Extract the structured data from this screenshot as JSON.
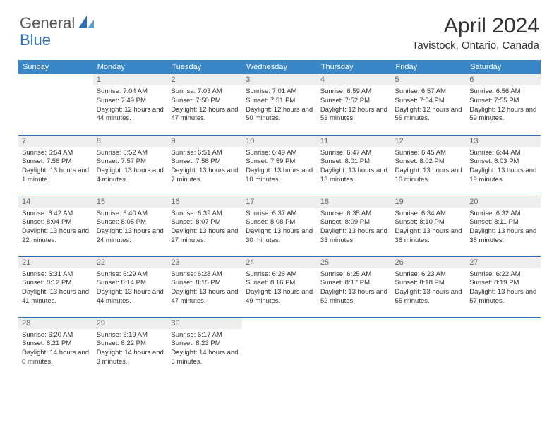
{
  "logo": {
    "text1": "General",
    "text2": "Blue"
  },
  "title": "April 2024",
  "location": "Tavistock, Ontario, Canada",
  "weekdays": [
    "Sunday",
    "Monday",
    "Tuesday",
    "Wednesday",
    "Thursday",
    "Friday",
    "Saturday"
  ],
  "colors": {
    "header_bg": "#3a87c8",
    "header_text": "#ffffff",
    "daynum_bg": "#eeeeee",
    "daynum_text": "#666666",
    "border": "#2e6fb5",
    "body_text": "#333333"
  },
  "weeks": [
    [
      {
        "n": "",
        "lines": []
      },
      {
        "n": "1",
        "lines": [
          "Sunrise: 7:04 AM",
          "Sunset: 7:49 PM",
          "Daylight: 12 hours and 44 minutes."
        ]
      },
      {
        "n": "2",
        "lines": [
          "Sunrise: 7:03 AM",
          "Sunset: 7:50 PM",
          "Daylight: 12 hours and 47 minutes."
        ]
      },
      {
        "n": "3",
        "lines": [
          "Sunrise: 7:01 AM",
          "Sunset: 7:51 PM",
          "Daylight: 12 hours and 50 minutes."
        ]
      },
      {
        "n": "4",
        "lines": [
          "Sunrise: 6:59 AM",
          "Sunset: 7:52 PM",
          "Daylight: 12 hours and 53 minutes."
        ]
      },
      {
        "n": "5",
        "lines": [
          "Sunrise: 6:57 AM",
          "Sunset: 7:54 PM",
          "Daylight: 12 hours and 56 minutes."
        ]
      },
      {
        "n": "6",
        "lines": [
          "Sunrise: 6:56 AM",
          "Sunset: 7:55 PM",
          "Daylight: 12 hours and 59 minutes."
        ]
      }
    ],
    [
      {
        "n": "7",
        "lines": [
          "Sunrise: 6:54 AM",
          "Sunset: 7:56 PM",
          "Daylight: 13 hours and 1 minute."
        ]
      },
      {
        "n": "8",
        "lines": [
          "Sunrise: 6:52 AM",
          "Sunset: 7:57 PM",
          "Daylight: 13 hours and 4 minutes."
        ]
      },
      {
        "n": "9",
        "lines": [
          "Sunrise: 6:51 AM",
          "Sunset: 7:58 PM",
          "Daylight: 13 hours and 7 minutes."
        ]
      },
      {
        "n": "10",
        "lines": [
          "Sunrise: 6:49 AM",
          "Sunset: 7:59 PM",
          "Daylight: 13 hours and 10 minutes."
        ]
      },
      {
        "n": "11",
        "lines": [
          "Sunrise: 6:47 AM",
          "Sunset: 8:01 PM",
          "Daylight: 13 hours and 13 minutes."
        ]
      },
      {
        "n": "12",
        "lines": [
          "Sunrise: 6:45 AM",
          "Sunset: 8:02 PM",
          "Daylight: 13 hours and 16 minutes."
        ]
      },
      {
        "n": "13",
        "lines": [
          "Sunrise: 6:44 AM",
          "Sunset: 8:03 PM",
          "Daylight: 13 hours and 19 minutes."
        ]
      }
    ],
    [
      {
        "n": "14",
        "lines": [
          "Sunrise: 6:42 AM",
          "Sunset: 8:04 PM",
          "Daylight: 13 hours and 22 minutes."
        ]
      },
      {
        "n": "15",
        "lines": [
          "Sunrise: 6:40 AM",
          "Sunset: 8:05 PM",
          "Daylight: 13 hours and 24 minutes."
        ]
      },
      {
        "n": "16",
        "lines": [
          "Sunrise: 6:39 AM",
          "Sunset: 8:07 PM",
          "Daylight: 13 hours and 27 minutes."
        ]
      },
      {
        "n": "17",
        "lines": [
          "Sunrise: 6:37 AM",
          "Sunset: 8:08 PM",
          "Daylight: 13 hours and 30 minutes."
        ]
      },
      {
        "n": "18",
        "lines": [
          "Sunrise: 6:35 AM",
          "Sunset: 8:09 PM",
          "Daylight: 13 hours and 33 minutes."
        ]
      },
      {
        "n": "19",
        "lines": [
          "Sunrise: 6:34 AM",
          "Sunset: 8:10 PM",
          "Daylight: 13 hours and 36 minutes."
        ]
      },
      {
        "n": "20",
        "lines": [
          "Sunrise: 6:32 AM",
          "Sunset: 8:11 PM",
          "Daylight: 13 hours and 38 minutes."
        ]
      }
    ],
    [
      {
        "n": "21",
        "lines": [
          "Sunrise: 6:31 AM",
          "Sunset: 8:12 PM",
          "Daylight: 13 hours and 41 minutes."
        ]
      },
      {
        "n": "22",
        "lines": [
          "Sunrise: 6:29 AM",
          "Sunset: 8:14 PM",
          "Daylight: 13 hours and 44 minutes."
        ]
      },
      {
        "n": "23",
        "lines": [
          "Sunrise: 6:28 AM",
          "Sunset: 8:15 PM",
          "Daylight: 13 hours and 47 minutes."
        ]
      },
      {
        "n": "24",
        "lines": [
          "Sunrise: 6:26 AM",
          "Sunset: 8:16 PM",
          "Daylight: 13 hours and 49 minutes."
        ]
      },
      {
        "n": "25",
        "lines": [
          "Sunrise: 6:25 AM",
          "Sunset: 8:17 PM",
          "Daylight: 13 hours and 52 minutes."
        ]
      },
      {
        "n": "26",
        "lines": [
          "Sunrise: 6:23 AM",
          "Sunset: 8:18 PM",
          "Daylight: 13 hours and 55 minutes."
        ]
      },
      {
        "n": "27",
        "lines": [
          "Sunrise: 6:22 AM",
          "Sunset: 8:19 PM",
          "Daylight: 13 hours and 57 minutes."
        ]
      }
    ],
    [
      {
        "n": "28",
        "lines": [
          "Sunrise: 6:20 AM",
          "Sunset: 8:21 PM",
          "Daylight: 14 hours and 0 minutes."
        ]
      },
      {
        "n": "29",
        "lines": [
          "Sunrise: 6:19 AM",
          "Sunset: 8:22 PM",
          "Daylight: 14 hours and 3 minutes."
        ]
      },
      {
        "n": "30",
        "lines": [
          "Sunrise: 6:17 AM",
          "Sunset: 8:23 PM",
          "Daylight: 14 hours and 5 minutes."
        ]
      },
      {
        "n": "",
        "lines": []
      },
      {
        "n": "",
        "lines": []
      },
      {
        "n": "",
        "lines": []
      },
      {
        "n": "",
        "lines": []
      }
    ]
  ]
}
